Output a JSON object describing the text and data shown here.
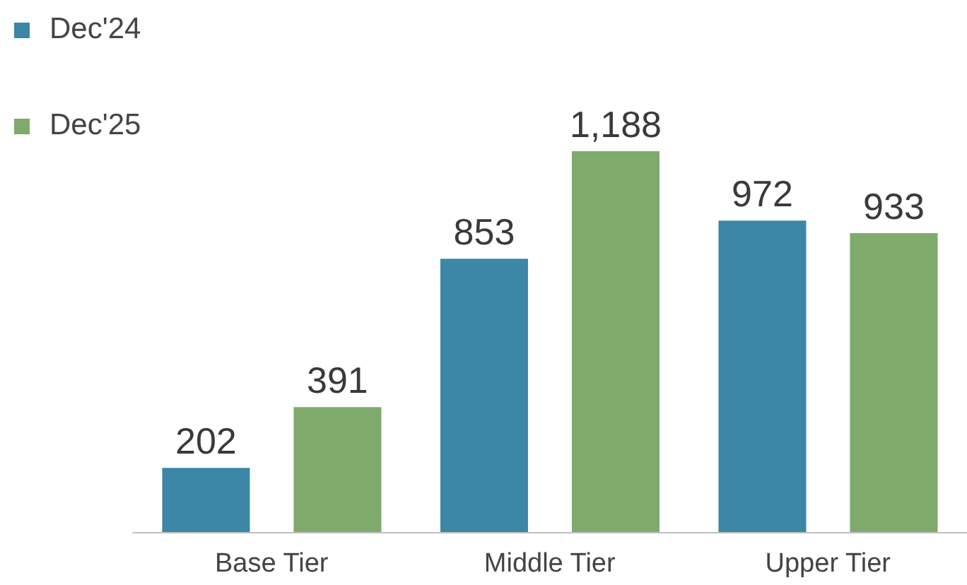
{
  "chart_data": {
    "type": "bar",
    "categories": [
      "Base Tier",
      "Middle Tier",
      "Upper Tier"
    ],
    "series": [
      {
        "name": "Dec'24",
        "color": "#3b87a5",
        "values": [
          202,
          853,
          972
        ],
        "value_labels": [
          "202",
          "853",
          "972"
        ]
      },
      {
        "name": "Dec'25",
        "color": "#7eaa6b",
        "values": [
          391,
          1188,
          933
        ],
        "value_labels": [
          "391",
          "1,188",
          "933"
        ]
      }
    ],
    "legend": "top left"
  }
}
